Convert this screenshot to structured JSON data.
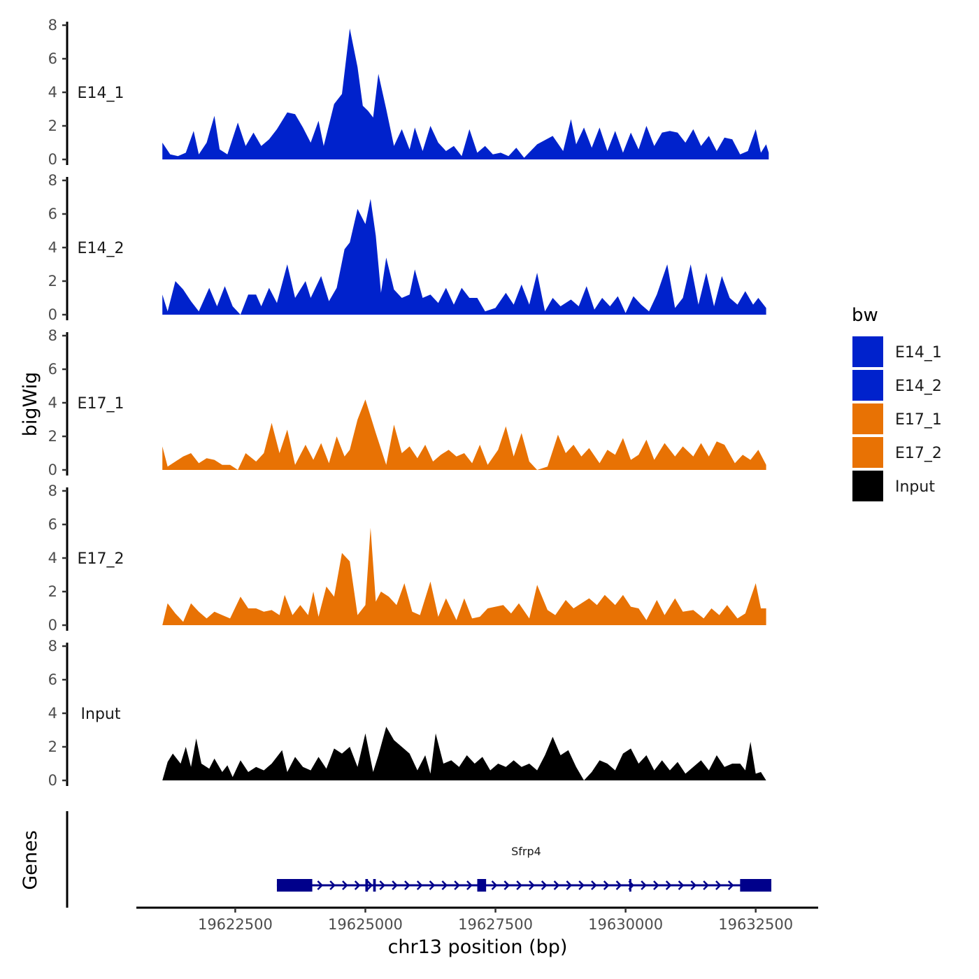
{
  "chart_data": {
    "type": "area",
    "ylabel": "bigWig",
    "xlabel": "chr13 position (bp)",
    "xlim": [
      19620600,
      19633700
    ],
    "ylim": [
      0,
      8
    ],
    "ytick_labels": [
      "0",
      "2",
      "4",
      "6",
      "8"
    ],
    "xtick_labels": [
      "19622500",
      "19625000",
      "19627500",
      "19630000",
      "19632500"
    ],
    "legend": {
      "title": "bw",
      "position": "right",
      "entries": [
        {
          "label": "E14_1",
          "color": "#0022CC"
        },
        {
          "label": "E14_2",
          "color": "#0022CC"
        },
        {
          "label": "E17_1",
          "color": "#E87204"
        },
        {
          "label": "E17_2",
          "color": "#E87204"
        },
        {
          "label": "Input",
          "color": "#000000"
        }
      ]
    },
    "series": [
      {
        "name": "E14_1",
        "color": "#0022CC",
        "x": [
          19621100,
          19621250,
          19621400,
          19621550,
          19621700,
          19621800,
          19621950,
          19622100,
          19622200,
          19622350,
          19622550,
          19622700,
          19622850,
          19623000,
          19623150,
          19623300,
          19623500,
          19623650,
          19623800,
          19623950,
          19624100,
          19624200,
          19624400,
          19624550,
          19624700,
          19624850,
          19624950,
          19625050,
          19625150,
          19625250,
          19625400,
          19625550,
          19625700,
          19625850,
          19625950,
          19626100,
          19626250,
          19626400,
          19626550,
          19626700,
          19626850,
          19627000,
          19627150,
          19627300,
          19627450,
          19627600,
          19627750,
          19627900,
          19628050,
          19628300,
          19628600,
          19628800,
          19628950,
          19629050,
          19629200,
          19629350,
          19629500,
          19629650,
          19629800,
          19629950,
          19630100,
          19630250,
          19630400,
          19630550,
          19630700,
          19630850,
          19631000,
          19631150,
          19631300,
          19631450,
          19631600,
          19631750,
          19631900,
          19632050,
          19632200,
          19632350,
          19632500,
          19632600,
          19632700,
          19632750
        ],
        "values": [
          1.0,
          0.3,
          0.2,
          0.4,
          1.7,
          0.3,
          1.0,
          2.6,
          0.6,
          0.3,
          2.2,
          0.8,
          1.6,
          0.8,
          1.2,
          1.8,
          2.8,
          2.7,
          1.9,
          1.0,
          2.3,
          0.8,
          3.3,
          3.9,
          7.8,
          5.5,
          3.2,
          2.9,
          2.5,
          5.1,
          3.0,
          0.8,
          1.8,
          0.6,
          1.9,
          0.5,
          2.0,
          1.0,
          0.5,
          0.8,
          0.2,
          1.8,
          0.4,
          0.8,
          0.3,
          0.4,
          0.2,
          0.7,
          0.1,
          0.9,
          1.4,
          0.5,
          2.4,
          0.9,
          1.9,
          0.7,
          1.9,
          0.5,
          1.7,
          0.4,
          1.6,
          0.6,
          2.0,
          0.8,
          1.6,
          1.7,
          1.6,
          1.0,
          1.8,
          0.8,
          1.4,
          0.5,
          1.3,
          1.2,
          0.3,
          0.5,
          1.8,
          0.4,
          0.9,
          0.4
        ]
      },
      {
        "name": "E14_2",
        "color": "#0022CC",
        "x": [
          19621100,
          19621200,
          19621350,
          19621500,
          19621650,
          19621800,
          19622000,
          19622150,
          19622300,
          19622450,
          19622600,
          19622750,
          19622900,
          19623000,
          19623150,
          19623300,
          19623500,
          19623650,
          19623850,
          19623950,
          19624150,
          19624300,
          19624450,
          19624600,
          19624700,
          19624850,
          19625000,
          19625100,
          19625200,
          19625300,
          19625400,
          19625550,
          19625700,
          19625850,
          19625950,
          19626100,
          19626250,
          19626400,
          19626550,
          19626700,
          19626850,
          19627000,
          19627150,
          19627300,
          19627500,
          19627700,
          19627850,
          19628000,
          19628150,
          19628300,
          19628450,
          19628600,
          19628750,
          19628950,
          19629100,
          19629250,
          19629400,
          19629550,
          19629700,
          19629850,
          19630000,
          19630150,
          19630300,
          19630450,
          19630600,
          19630800,
          19630950,
          19631100,
          19631250,
          19631400,
          19631550,
          19631700,
          19631850,
          19632000,
          19632150,
          19632300,
          19632450,
          19632550,
          19632700
        ],
        "values": [
          1.2,
          0.2,
          2.0,
          1.5,
          0.8,
          0.2,
          1.6,
          0.5,
          1.7,
          0.5,
          0.0,
          1.2,
          1.2,
          0.5,
          1.6,
          0.7,
          3.0,
          1.0,
          2.0,
          1.0,
          2.3,
          0.8,
          1.6,
          3.9,
          4.3,
          6.3,
          5.4,
          6.9,
          4.7,
          1.3,
          3.4,
          1.5,
          1.0,
          1.2,
          2.7,
          1.0,
          1.2,
          0.7,
          1.6,
          0.6,
          1.6,
          1.0,
          1.0,
          0.2,
          0.4,
          1.3,
          0.6,
          1.8,
          0.6,
          2.5,
          0.2,
          1.0,
          0.5,
          0.9,
          0.5,
          1.7,
          0.3,
          1.0,
          0.5,
          1.1,
          0.1,
          1.1,
          0.6,
          0.2,
          1.2,
          3.0,
          0.4,
          1.0,
          3.0,
          0.6,
          2.5,
          0.5,
          2.3,
          1.0,
          0.6,
          1.4,
          0.6,
          1.0,
          0.4
        ]
      },
      {
        "name": "E17_1",
        "color": "#E87204",
        "x": [
          19621100,
          19621200,
          19621350,
          19621500,
          19621650,
          19621800,
          19621950,
          19622100,
          19622250,
          19622400,
          19622550,
          19622700,
          19622900,
          19623050,
          19623200,
          19623350,
          19623500,
          19623650,
          19623850,
          19624000,
          19624150,
          19624300,
          19624450,
          19624600,
          19624700,
          19624850,
          19625000,
          19625200,
          19625400,
          19625550,
          19625700,
          19625850,
          19626000,
          19626150,
          19626300,
          19626450,
          19626600,
          19626750,
          19626900,
          19627050,
          19627200,
          19627350,
          19627550,
          19627700,
          19627850,
          19628000,
          19628150,
          19628300,
          19628500,
          19628700,
          19628850,
          19629000,
          19629150,
          19629300,
          19629500,
          19629650,
          19629800,
          19629950,
          19630100,
          19630250,
          19630400,
          19630550,
          19630750,
          19630950,
          19631100,
          19631300,
          19631450,
          19631600,
          19631750,
          19631900,
          19632100,
          19632250,
          19632400,
          19632550,
          19632700
        ],
        "values": [
          1.4,
          0.2,
          0.5,
          0.8,
          1.0,
          0.4,
          0.7,
          0.6,
          0.3,
          0.3,
          0.0,
          1.0,
          0.5,
          1.0,
          2.8,
          1.0,
          2.4,
          0.3,
          1.5,
          0.6,
          1.6,
          0.4,
          2.0,
          0.8,
          1.2,
          3.0,
          4.2,
          2.2,
          0.3,
          2.7,
          1.0,
          1.4,
          0.7,
          1.5,
          0.5,
          0.9,
          1.2,
          0.8,
          1.0,
          0.4,
          1.5,
          0.3,
          1.2,
          2.6,
          0.8,
          2.2,
          0.5,
          0.0,
          0.2,
          2.1,
          1.0,
          1.5,
          0.8,
          1.3,
          0.4,
          1.2,
          0.9,
          1.9,
          0.6,
          0.9,
          1.8,
          0.6,
          1.6,
          0.8,
          1.4,
          0.8,
          1.6,
          0.8,
          1.7,
          1.5,
          0.4,
          0.9,
          0.6,
          1.2,
          0.3
        ]
      },
      {
        "name": "E17_2",
        "color": "#E87204",
        "x": [
          19621100,
          19621200,
          19621350,
          19621500,
          19621650,
          19621800,
          19621950,
          19622100,
          19622250,
          19622400,
          19622600,
          19622750,
          19622900,
          19623050,
          19623200,
          19623350,
          19623450,
          19623600,
          19623750,
          19623900,
          19624000,
          19624100,
          19624250,
          19624400,
          19624550,
          19624700,
          19624850,
          19625000,
          19625100,
          19625200,
          19625300,
          19625450,
          19625600,
          19625750,
          19625900,
          19626050,
          19626250,
          19626400,
          19626550,
          19626750,
          19626900,
          19627050,
          19627200,
          19627350,
          19627500,
          19627650,
          19627800,
          19627950,
          19628150,
          19628300,
          19628500,
          19628650,
          19628850,
          19629000,
          19629150,
          19629300,
          19629450,
          19629600,
          19629800,
          19629950,
          19630100,
          19630250,
          19630400,
          19630600,
          19630750,
          19630950,
          19631100,
          19631300,
          19631500,
          19631650,
          19631800,
          19631950,
          19632150,
          19632300,
          19632500,
          19632600,
          19632700
        ],
        "values": [
          0.0,
          1.3,
          0.7,
          0.2,
          1.3,
          0.8,
          0.4,
          0.8,
          0.6,
          0.4,
          1.7,
          1.0,
          1.0,
          0.8,
          0.9,
          0.6,
          1.8,
          0.6,
          1.2,
          0.6,
          2.0,
          0.5,
          2.3,
          1.7,
          4.3,
          3.8,
          0.6,
          1.2,
          5.8,
          1.4,
          2.0,
          1.7,
          1.2,
          2.5,
          0.8,
          0.6,
          2.6,
          0.5,
          1.6,
          0.3,
          1.6,
          0.4,
          0.5,
          1.0,
          1.1,
          1.2,
          0.7,
          1.3,
          0.4,
          2.4,
          0.9,
          0.6,
          1.5,
          1.0,
          1.3,
          1.6,
          1.2,
          1.8,
          1.2,
          1.8,
          1.1,
          1.0,
          0.3,
          1.5,
          0.6,
          1.6,
          0.8,
          0.9,
          0.4,
          1.0,
          0.6,
          1.2,
          0.4,
          0.7,
          2.5,
          1.0,
          1.0
        ]
      },
      {
        "name": "Input",
        "color": "#000000",
        "x": [
          19621100,
          19621200,
          19621300,
          19621450,
          19621550,
          19621650,
          19621750,
          19621850,
          19622000,
          19622100,
          19622250,
          19622350,
          19622450,
          19622600,
          19622750,
          19622900,
          19623050,
          19623200,
          19623400,
          19623500,
          19623650,
          19623800,
          19623950,
          19624100,
          19624250,
          19624400,
          19624550,
          19624700,
          19624850,
          19625000,
          19625150,
          19625250,
          19625400,
          19625550,
          19625700,
          19625850,
          19626000,
          19626150,
          19626250,
          19626350,
          19626500,
          19626650,
          19626800,
          19626950,
          19627100,
          19627250,
          19627400,
          19627550,
          19627700,
          19627850,
          19628000,
          19628150,
          19628300,
          19628450,
          19628600,
          19628750,
          19628900,
          19629050,
          19629200,
          19629350,
          19629500,
          19629650,
          19629800,
          19629950,
          19630100,
          19630250,
          19630400,
          19630550,
          19630700,
          19630850,
          19631000,
          19631150,
          19631300,
          19631450,
          19631600,
          19631750,
          19631900,
          19632050,
          19632200,
          19632300,
          19632400,
          19632500,
          19632600,
          19632700
        ],
        "values": [
          0.0,
          1.1,
          1.6,
          1.0,
          2.0,
          0.8,
          2.5,
          1.0,
          0.7,
          1.3,
          0.5,
          0.9,
          0.2,
          1.2,
          0.5,
          0.8,
          0.6,
          1.0,
          1.8,
          0.5,
          1.4,
          0.8,
          0.6,
          1.4,
          0.7,
          1.9,
          1.6,
          2.0,
          0.8,
          2.8,
          0.5,
          1.5,
          3.2,
          2.4,
          2.0,
          1.6,
          0.6,
          1.5,
          0.4,
          2.8,
          1.0,
          1.2,
          0.8,
          1.5,
          1.0,
          1.4,
          0.6,
          1.0,
          0.8,
          1.2,
          0.8,
          1.0,
          0.6,
          1.5,
          2.6,
          1.5,
          1.8,
          0.8,
          0.0,
          0.5,
          1.2,
          1.0,
          0.6,
          1.6,
          1.9,
          1.0,
          1.5,
          0.6,
          1.2,
          0.6,
          1.1,
          0.4,
          0.8,
          1.2,
          0.6,
          1.5,
          0.8,
          1.0,
          1.0,
          0.6,
          2.3,
          0.4,
          0.5,
          0.0
        ]
      }
    ],
    "gene_track": {
      "ylabel": "Genes",
      "gene_name": "Sfrp4",
      "color": "#00008B",
      "strand": "+",
      "start": 19623300,
      "end": 19632800,
      "exons": [
        {
          "start": 19623300,
          "end": 19623980
        },
        {
          "start": 19625000,
          "end": 19625050
        },
        {
          "start": 19625150,
          "end": 19625200
        },
        {
          "start": 19627150,
          "end": 19627320
        },
        {
          "start": 19630070,
          "end": 19630110
        },
        {
          "start": 19632200,
          "end": 19632800
        }
      ]
    }
  }
}
